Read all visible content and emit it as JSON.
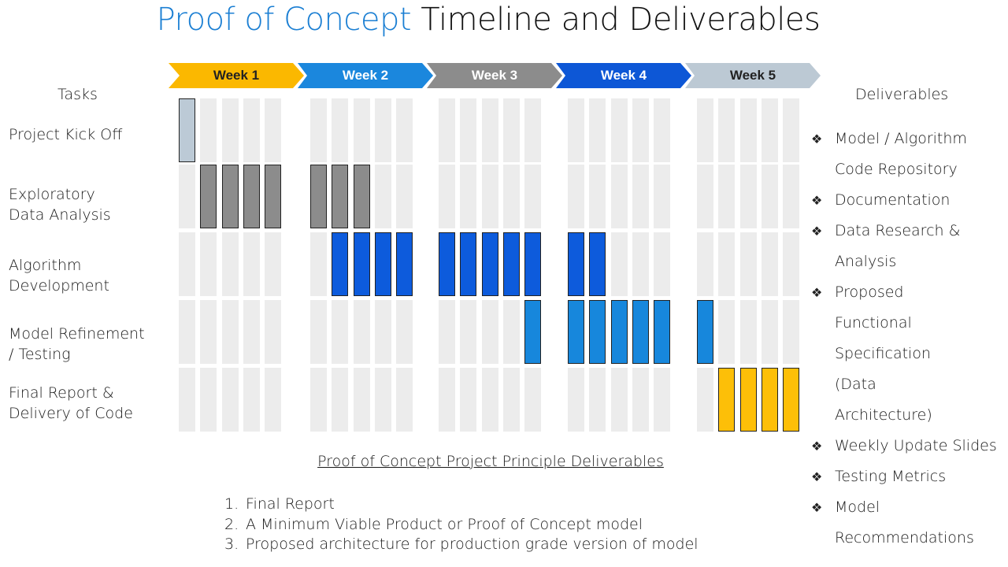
{
  "title": {
    "accent": "Proof of Concept",
    "rest": " Timeline and Deliverables"
  },
  "colors": {
    "title_accent": "#1b7fd3",
    "empty_cell": "#ececec"
  },
  "headings": {
    "tasks": "Tasks",
    "deliverables": "Deliverables"
  },
  "weeks": [
    {
      "label": "Week 1",
      "color": "#fbb800",
      "text_color": "#222222"
    },
    {
      "label": "Week 2",
      "color": "#1b87dd",
      "text_color": "#ffffff"
    },
    {
      "label": "Week 3",
      "color": "#8c8c8c",
      "text_color": "#ffffff"
    },
    {
      "label": "Week 4",
      "color": "#0d57d6",
      "text_color": "#ffffff"
    },
    {
      "label": "Week 5",
      "color": "#bcc9d4",
      "text_color": "#222222"
    }
  ],
  "days_per_week": 5,
  "tasks": [
    {
      "label": "Project Kick Off",
      "color": "#bccad6",
      "days": [
        1
      ]
    },
    {
      "label": "Exploratory Data Analysis",
      "color": "#8c8c8c",
      "days": [
        2,
        3,
        4,
        5,
        6,
        7,
        8
      ]
    },
    {
      "label": "Algorithm Development",
      "color": "#0d5bdc",
      "days": [
        7,
        8,
        9,
        10,
        11,
        12,
        13,
        14,
        15,
        16,
        17
      ]
    },
    {
      "label": "Model Refinement / Testing",
      "color": "#1787dc",
      "days": [
        15,
        16,
        17,
        18,
        19,
        20,
        21
      ]
    },
    {
      "label": "Final Report & Delivery of Code",
      "color": "#fdbf08",
      "days": [
        22,
        23,
        24,
        25
      ]
    }
  ],
  "deliverables": {
    "bullet": "❖",
    "items": [
      "Model / Algorithm Code Repository",
      "Documentation",
      "Data Research & Analysis",
      "Proposed Functional Specification (Data Architecture)",
      "Weekly Update Slides",
      "Testing Metrics",
      "Model Recommendations"
    ]
  },
  "principle": {
    "title": "Proof of Concept Project Principle Deliverables",
    "items": [
      {
        "num": "1.",
        "text": "Final Report"
      },
      {
        "num": "2.",
        "text": "A Minimum Viable Product or Proof of Concept model"
      },
      {
        "num": "3.",
        "text": "Proposed architecture for production grade version of model"
      }
    ]
  }
}
